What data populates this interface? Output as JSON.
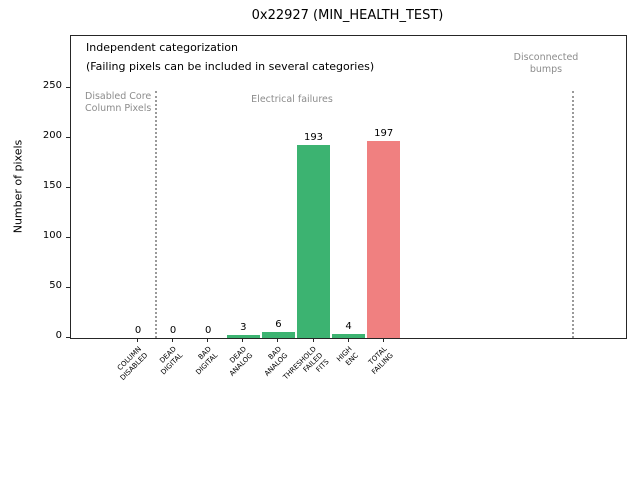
{
  "chart_data": {
    "type": "bar",
    "title": "0x22927 (MIN_HEALTH_TEST)",
    "xlabel": "",
    "ylabel": "Number of pixels",
    "categories": [
      "COLUMN\nDISABLED",
      "DEAD\nDIGITAL",
      "BAD\nDIGITAL",
      "DEAD\nANALOG",
      "BAD\nANALOG",
      "THRESHOLD\nFAILED\nFITS",
      "HIGH\nENC",
      "TOTAL\nFAILING"
    ],
    "values": [
      0,
      0,
      0,
      3,
      6,
      193,
      4,
      197
    ],
    "bar_colors": [
      "#3cb371",
      "#3cb371",
      "#3cb371",
      "#3cb371",
      "#3cb371",
      "#3cb371",
      "#3cb371",
      "#f08080"
    ],
    "yticks": [
      0,
      50,
      100,
      150,
      200,
      250
    ],
    "ylim": [
      0,
      302
    ],
    "grid": false,
    "legend": "none",
    "annotations": {
      "line1": "Independent categorization",
      "line2": "(Failing pixels can be included in several categories)"
    },
    "regions": [
      {
        "label": "Disabled Core\nColumn Pixels"
      },
      {
        "label": "Electrical failures"
      },
      {
        "label": "Disconnected\nbumps"
      }
    ]
  }
}
